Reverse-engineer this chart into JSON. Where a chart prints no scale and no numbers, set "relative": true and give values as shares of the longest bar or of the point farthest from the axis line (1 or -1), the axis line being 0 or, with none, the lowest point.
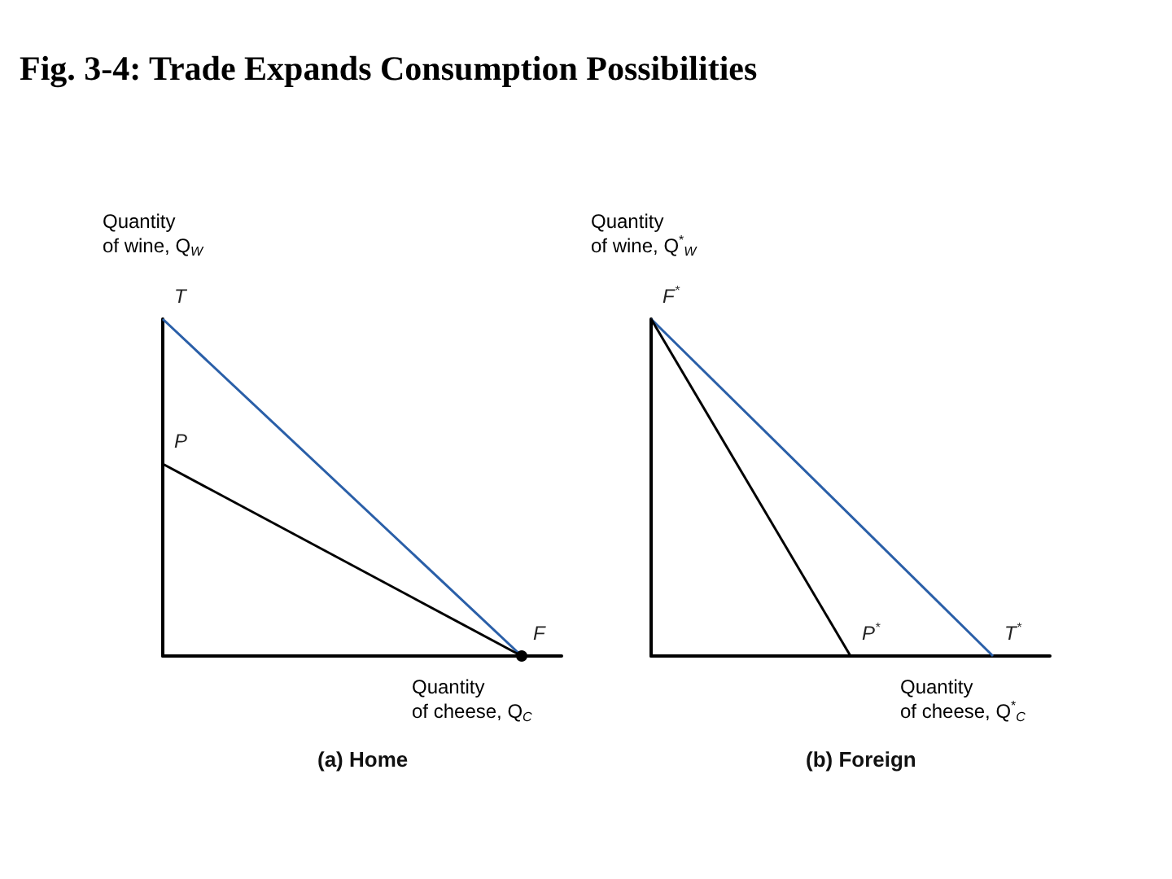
{
  "chart_data": [
    {
      "type": "line",
      "title": "Fig. 3-4: Trade Expands Consumption Possibilities",
      "subtitle": "(a) Home",
      "xlabel": "Quantity\nof cheese, Q$_{C}$",
      "ylabel": "Quantity\nof wine, Q$_{W}$",
      "relative": true,
      "marker": "none",
      "grid": false,
      "categories": [
        null,
        null,
        null,
        null,
        null,
        null,
        null,
        null,
        null,
        null,
        null
      ],
      "series": [
        {
          "color": "#2a5fa8",
          "values": [
            1,
            null,
            null,
            null,
            null,
            null,
            null,
            null,
            null,
            0,
            null
          ]
        },
        {
          "color": "#000000",
          "values": [
            0.57,
            null,
            null,
            null,
            null,
            null,
            null,
            null,
            null,
            0,
            null
          ]
        },
        {
          "type": "line",
          "marker": "circle",
          "color": "#000000",
          "values": [
            null,
            null,
            null,
            null,
            null,
            null,
            null,
            null,
            null,
            0,
            null
          ]
        }
      ],
      "annotations": [
        "T",
        "F",
        "P"
      ]
    },
    {
      "type": "line",
      "subtitle": "(b) Foreign",
      "xlabel": "Quantity\nof cheese, Q$^{*}$$_{C}$",
      "ylabel": "Quantity\nof wine, Q$^{*}$$_{W}$",
      "relative": true,
      "marker": "none",
      "grid": false,
      "categories": [
        null,
        null,
        null,
        null,
        null,
        null,
        null,
        null,
        null,
        null,
        null,
        null,
        null,
        null,
        null
      ],
      "series": [
        {
          "color": "#2a5fa8",
          "values": [
            1,
            null,
            null,
            null,
            null,
            null,
            null,
            null,
            null,
            null,
            null,
            null,
            0,
            null,
            null
          ]
        },
        {
          "color": "#000000",
          "values": [
            1,
            null,
            null,
            null,
            null,
            null,
            null,
            0,
            null,
            null,
            null,
            null,
            null,
            null,
            null
          ]
        }
      ],
      "annotations": [
        "F$^{*}$",
        "T$^{*}$",
        "P$^{*}$"
      ]
    }
  ]
}
